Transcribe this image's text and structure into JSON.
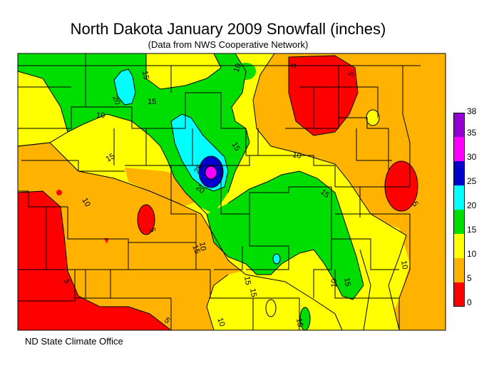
{
  "title": "North Dakota January 2009 Snowfall (inches)",
  "subtitle": "(Data from NWS Cooperative Network)",
  "footer": "ND State Climate Office",
  "legend": {
    "ticks": [
      "38",
      "35",
      "30",
      "25",
      "20",
      "15",
      "10",
      "5",
      "0"
    ],
    "bins": [
      {
        "range": "35-38",
        "color": "#9400d3"
      },
      {
        "range": "30-35",
        "color": "#ff00ff"
      },
      {
        "range": "25-30",
        "color": "#0000cd"
      },
      {
        "range": "20-25",
        "color": "#00ffff"
      },
      {
        "range": "15-20",
        "color": "#00dd00"
      },
      {
        "range": "10-15",
        "color": "#ffff00"
      },
      {
        "range": "5-10",
        "color": "#ffb300"
      },
      {
        "range": "0-5",
        "color": "#ff0000"
      }
    ]
  },
  "contour_labels": [
    "15",
    "10",
    "5",
    "20",
    "15",
    "10",
    "15",
    "25",
    "20",
    "15",
    "10",
    "15",
    "10",
    "5",
    "5",
    "10",
    "10",
    "15",
    "15",
    "5",
    "15",
    "15",
    "5",
    "10",
    "5",
    "10",
    "15"
  ]
}
